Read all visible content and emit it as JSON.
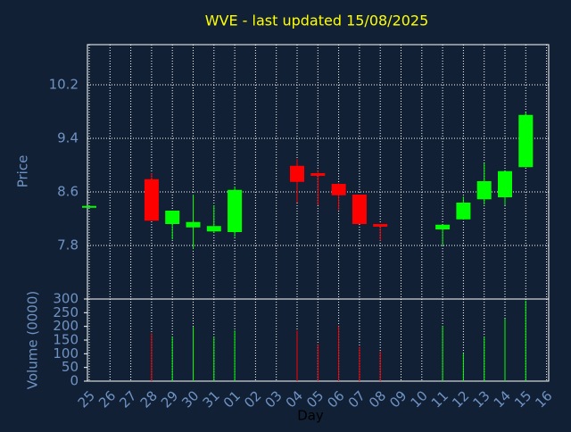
{
  "chart_data": {
    "type": "candlestick",
    "title": "WVE - last updated 15/08/2025",
    "x_label": "Day",
    "y_label": "Price",
    "categories": [
      "25",
      "26",
      "27",
      "28",
      "29",
      "30",
      "31",
      "01",
      "02",
      "03",
      "04",
      "05",
      "06",
      "07",
      "08",
      "09",
      "10",
      "11",
      "12",
      "13",
      "14",
      "15",
      "16"
    ],
    "open": [
      8.38,
      null,
      null,
      8.79,
      8.12,
      8.07,
      8.01,
      8.0,
      null,
      null,
      8.99,
      8.88,
      8.72,
      8.56,
      8.12,
      null,
      null,
      8.04,
      8.19,
      8.49,
      8.52,
      8.97,
      null
    ],
    "high": [
      8.39,
      null,
      null,
      8.88,
      8.32,
      8.56,
      8.4,
      8.68,
      null,
      null,
      9.09,
      8.92,
      8.73,
      8.56,
      8.12,
      null,
      null,
      8.11,
      8.53,
      9.03,
      8.91,
      9.79,
      null
    ],
    "low": [
      8.38,
      null,
      null,
      8.17,
      7.89,
      7.75,
      7.99,
      7.93,
      null,
      null,
      8.44,
      8.4,
      8.33,
      8.12,
      7.87,
      null,
      null,
      7.8,
      8.19,
      8.41,
      8.4,
      8.97,
      null
    ],
    "close": [
      8.39,
      null,
      null,
      8.17,
      8.32,
      8.15,
      8.09,
      8.63,
      null,
      null,
      8.75,
      8.84,
      8.55,
      8.12,
      8.08,
      null,
      null,
      8.11,
      8.44,
      8.76,
      8.91,
      9.75,
      null
    ],
    "up_color": "#00ff00",
    "down_color": "#ff0000",
    "ylim": [
      7.0,
      10.8
    ],
    "yticks": [
      7.8,
      8.6,
      9.4,
      10.2
    ],
    "grid": true,
    "volume": {
      "label": "Volume (0000)",
      "values": [
        null,
        null,
        null,
        175,
        162,
        198,
        162,
        185,
        null,
        null,
        185,
        135,
        201,
        125,
        109,
        null,
        null,
        201,
        102,
        162,
        228,
        294,
        null
      ],
      "ylim": [
        0,
        300
      ],
      "yticks": [
        0,
        50,
        100,
        150,
        200,
        250,
        300
      ]
    }
  }
}
